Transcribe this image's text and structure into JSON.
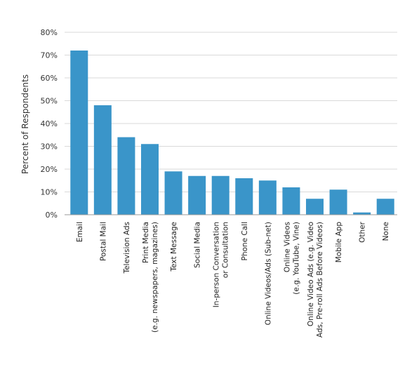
{
  "chart_data": {
    "type": "bar",
    "ylabel": "Percent of Respondents",
    "xlabel": "",
    "ylim": [
      0,
      80
    ],
    "yticks": [
      0,
      10,
      20,
      30,
      40,
      50,
      60,
      70,
      80
    ],
    "ytick_labels": [
      "0%",
      "10%",
      "20%",
      "30%",
      "40%",
      "50%",
      "60%",
      "70%",
      "80%"
    ],
    "grid": true,
    "bar_color": "#3a95c9",
    "categories": [
      [
        "Email"
      ],
      [
        "Postal Mail"
      ],
      [
        "Television Ads"
      ],
      [
        "Print Media",
        "(e.g. newspapers, magazines)"
      ],
      [
        "Text Message"
      ],
      [
        "Social Media"
      ],
      [
        "In-person Conversation",
        "or Consultation"
      ],
      [
        "Phone Call"
      ],
      [
        "Online Videos/Ads (Sub-net)"
      ],
      [
        "Online Videos",
        "(e.g. YouTube, Vine)"
      ],
      [
        "Online Video Ads (e.g. Video",
        "Ads, Pre-roll Ads Before Videos)"
      ],
      [
        "Mobile App"
      ],
      [
        "Other"
      ],
      [
        "None"
      ]
    ],
    "values": [
      72,
      48,
      34,
      31,
      19,
      17,
      17,
      16,
      15,
      12,
      7,
      11,
      1,
      7
    ]
  }
}
